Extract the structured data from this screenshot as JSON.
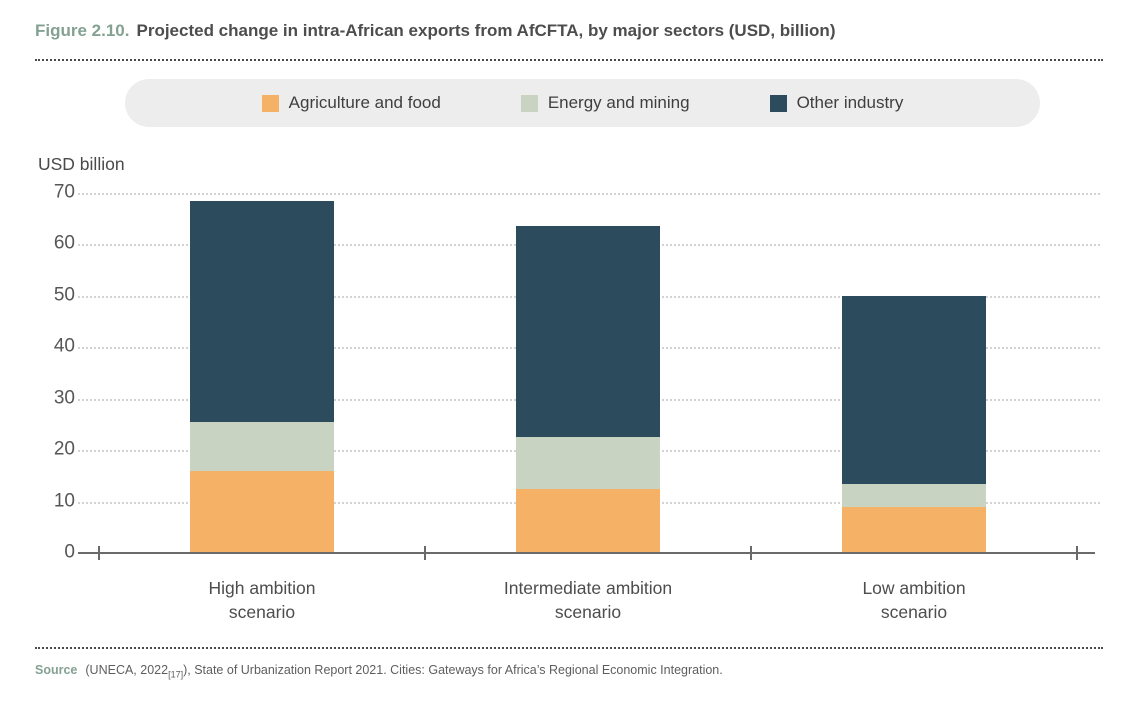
{
  "figure": {
    "label": "Figure 2.10.",
    "title": "Projected change in intra-African exports from AfCFTA, by major sectors (USD, billion)"
  },
  "legend": {
    "items": [
      {
        "label": "Agriculture and food",
        "color": "#F5B266"
      },
      {
        "label": "Energy and mining",
        "color": "#C8D3C1"
      },
      {
        "label": "Other industry",
        "color": "#2C4C5E"
      }
    ]
  },
  "x_axis": {
    "labels": [
      {
        "line1": "High ambition",
        "line2": "scenario"
      },
      {
        "line1": "Intermediate ambition",
        "line2": "scenario"
      },
      {
        "line1": "Low ambition",
        "line2": "scenario"
      }
    ]
  },
  "source": {
    "label": "Source",
    "pre_ref": "(UNECA, 2022",
    "ref": "[17]",
    "post_ref": "), State of Urbanization Report 2021. Cities: Gateways for Africa’s Regional Economic Integration."
  },
  "colors": {
    "figure_label_green": "#85A193",
    "title_text": "#4D4D4D",
    "legend_background": "#EDEDED",
    "axis_line": "#6A6A6A",
    "gridline": "#D3D3D3"
  },
  "chart_data": {
    "type": "bar",
    "stacked": true,
    "title": "Projected change in intra-African exports from AfCFTA, by major sectors (USD, billion)",
    "xlabel": "",
    "ylabel": "USD billion",
    "ylim": [
      0,
      70
    ],
    "y_ticks": [
      70,
      60,
      50,
      40,
      30,
      20,
      10,
      0
    ],
    "grid": "horizontal-dotted",
    "legend_position": "top",
    "categories": [
      "High ambition scenario",
      "Intermediate ambition scenario",
      "Low ambition scenario"
    ],
    "series": [
      {
        "name": "Agriculture and food",
        "color": "#F5B266",
        "values": [
          16,
          12.5,
          9
        ]
      },
      {
        "name": "Energy and mining",
        "color": "#C8D3C1",
        "values": [
          9.5,
          10,
          4.5
        ]
      },
      {
        "name": "Other industry",
        "color": "#2C4C5E",
        "values": [
          43,
          41,
          36.5
        ]
      }
    ],
    "stack_totals": [
      68.5,
      63.5,
      50
    ]
  }
}
